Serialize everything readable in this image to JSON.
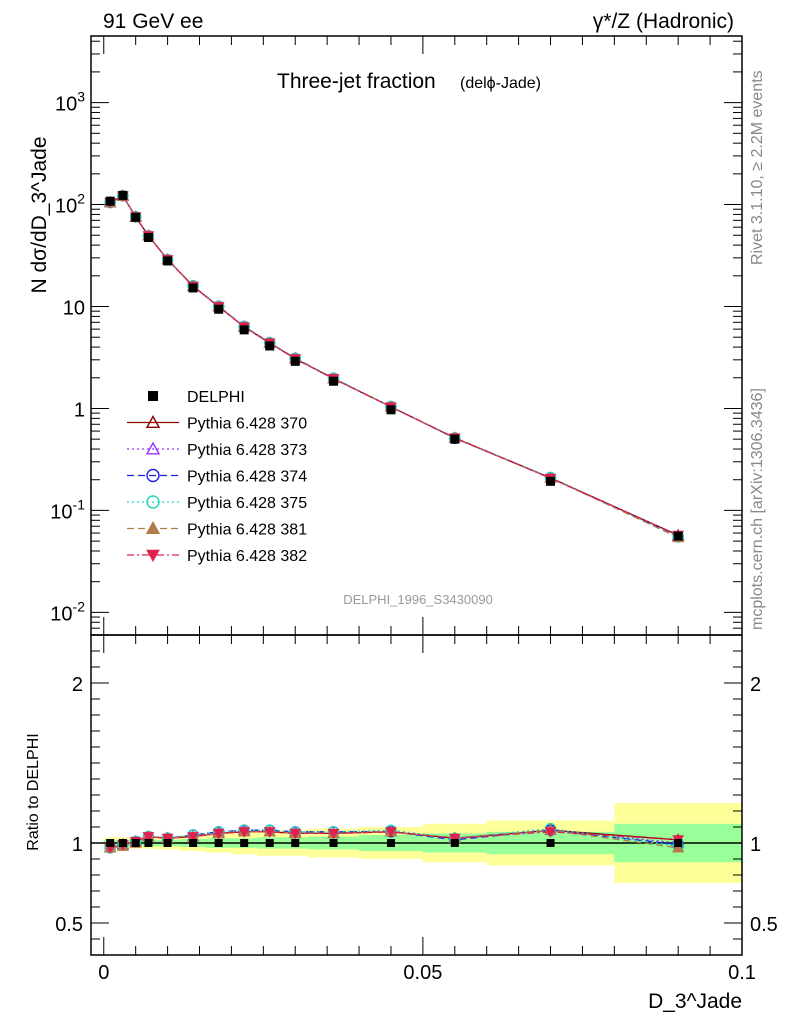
{
  "header": {
    "left": "91 GeV ee",
    "right": "γ*/Z (Hadronic)"
  },
  "side_text": {
    "top": "Rivet 3.1.10, ≥ 2.2M events",
    "bottom": "mcplots.cern.ch [arXiv:1306.3436]"
  },
  "chart_data": {
    "type": "scatter",
    "title": "Three-jet fraction",
    "subtitle": "(delϕ-Jade)",
    "watermark": "DELPHI_1996_S3430090",
    "xlabel": "D_3^Jade",
    "ylabel": "N dσ/dD_3^Jade",
    "ratio_ylabel": "Ratio to DELPHI",
    "xlim": [
      -0.002,
      0.1
    ],
    "ylim": [
      0.006,
      4500
    ],
    "ylog": true,
    "ratio_ylim": [
      0.3,
      2.3
    ],
    "x_ticks": [
      "0",
      "0.05",
      "0.1"
    ],
    "y_ticks": [
      "10^-2",
      "10^-1",
      "1",
      "10",
      "10^2",
      "10^3"
    ],
    "ratio_ticks": [
      "0.5",
      "1",
      "2"
    ],
    "legend_position": "left-middle",
    "x": [
      0.001,
      0.003,
      0.005,
      0.007,
      0.01,
      0.014,
      0.018,
      0.022,
      0.026,
      0.03,
      0.036,
      0.045,
      0.055,
      0.07,
      0.09
    ],
    "bin_edges": [
      0,
      0.002,
      0.004,
      0.006,
      0.008,
      0.012,
      0.016,
      0.02,
      0.024,
      0.028,
      0.032,
      0.04,
      0.05,
      0.06,
      0.08,
      0.1
    ],
    "data": {
      "name": "DELPHI",
      "values": [
        108,
        123,
        75,
        47.5,
        28,
        15.2,
        9.4,
        5.9,
        4.1,
        2.9,
        1.85,
        0.97,
        0.5,
        0.193,
        0.056
      ],
      "band_inner": [
        0.02,
        0.02,
        0.02,
        0.02,
        0.02,
        0.025,
        0.03,
        0.03,
        0.035,
        0.035,
        0.04,
        0.05,
        0.06,
        0.07,
        0.12
      ],
      "band_outer": [
        0.035,
        0.035,
        0.035,
        0.035,
        0.04,
        0.05,
        0.06,
        0.07,
        0.08,
        0.08,
        0.09,
        0.1,
        0.12,
        0.14,
        0.25
      ],
      "color": "#000000"
    },
    "series": [
      {
        "name": "Pythia 6.428 370",
        "color": "#8b0000",
        "marker": "triangle-open",
        "dash": "",
        "ratio": [
          0.97,
          0.99,
          1.01,
          1.04,
          1.03,
          1.04,
          1.06,
          1.07,
          1.07,
          1.06,
          1.06,
          1.07,
          1.03,
          1.08,
          1.02
        ]
      },
      {
        "name": "Pythia 6.428 373",
        "color": "#9b30ff",
        "marker": "triangle-open",
        "dash": "2,3",
        "ratio": [
          0.97,
          0.99,
          1.01,
          1.04,
          1.03,
          1.04,
          1.07,
          1.08,
          1.07,
          1.07,
          1.06,
          1.07,
          1.03,
          1.08,
          1.0
        ]
      },
      {
        "name": "Pythia 6.428 374",
        "color": "#1e1ee6",
        "marker": "circle-open",
        "dash": "7,4",
        "ratio": [
          0.97,
          0.99,
          1.01,
          1.04,
          1.03,
          1.05,
          1.07,
          1.08,
          1.08,
          1.07,
          1.07,
          1.07,
          1.02,
          1.08,
          0.99
        ]
      },
      {
        "name": "Pythia 6.428 375",
        "color": "#1fd4c0",
        "marker": "circle-open",
        "dash": "2,3",
        "ratio": [
          0.97,
          0.99,
          1.01,
          1.04,
          1.03,
          1.05,
          1.07,
          1.08,
          1.08,
          1.07,
          1.07,
          1.08,
          1.03,
          1.09,
          0.98
        ]
      },
      {
        "name": "Pythia 6.428 381",
        "color": "#b07d4a",
        "marker": "triangle-filled",
        "dash": "7,4",
        "ratio": [
          0.97,
          0.98,
          1.0,
          1.04,
          1.03,
          1.04,
          1.06,
          1.07,
          1.07,
          1.06,
          1.06,
          1.07,
          1.03,
          1.08,
          0.97
        ]
      },
      {
        "name": "Pythia 6.428 382",
        "color": "#e0204f",
        "marker": "triangle-down-filled",
        "dash": "7,3,2,3",
        "ratio": [
          0.97,
          0.99,
          1.01,
          1.04,
          1.03,
          1.04,
          1.06,
          1.07,
          1.07,
          1.06,
          1.06,
          1.07,
          1.03,
          1.07,
          1.02
        ]
      }
    ],
    "band_colors": {
      "inner": "#99ff99",
      "outer": "#ffff99"
    }
  }
}
